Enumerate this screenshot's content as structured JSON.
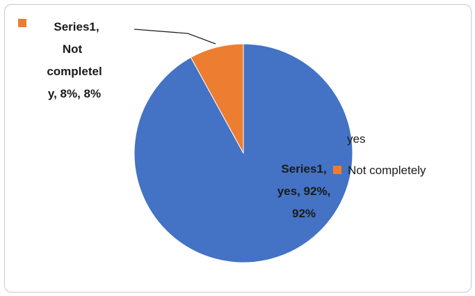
{
  "chart_data": {
    "type": "pie",
    "series": [
      {
        "name": "Series1",
        "categories": [
          "yes",
          "Not completely"
        ],
        "values": [
          92,
          8
        ],
        "colors": [
          "#4472C4",
          "#ED7D31"
        ]
      }
    ],
    "data_labels": [
      [
        "Series1,",
        "yes, 92%,",
        "92%"
      ],
      [
        "Series1,",
        "Not",
        "completel",
        "y, 8%, 8%"
      ]
    ],
    "legend": {
      "position": "right",
      "entries": [
        "yes",
        "Not completely"
      ]
    }
  }
}
